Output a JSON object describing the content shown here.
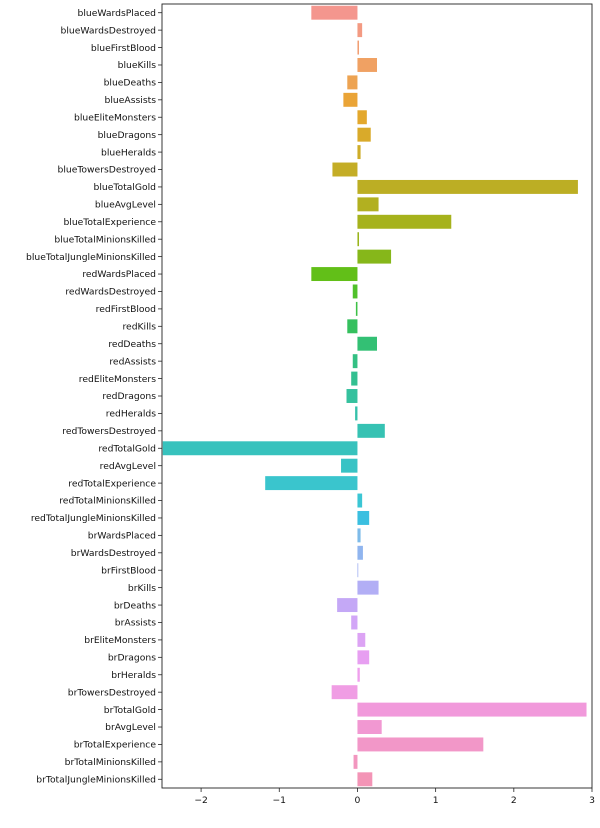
{
  "chart_data": {
    "type": "bar",
    "orientation": "horizontal",
    "categories": [
      "blueWardsPlaced",
      "blueWardsDestroyed",
      "blueFirstBlood",
      "blueKills",
      "blueDeaths",
      "blueAssists",
      "blueEliteMonsters",
      "blueDragons",
      "blueHeralds",
      "blueTowersDestroyed",
      "blueTotalGold",
      "blueAvgLevel",
      "blueTotalExperience",
      "blueTotalMinionsKilled",
      "blueTotalJungleMinionsKilled",
      "redWardsPlaced",
      "redWardsDestroyed",
      "redFirstBlood",
      "redKills",
      "redDeaths",
      "redAssists",
      "redEliteMonsters",
      "redDragons",
      "redHeralds",
      "redTowersDestroyed",
      "redTotalGold",
      "redAvgLevel",
      "redTotalExperience",
      "redTotalMinionsKilled",
      "redTotalJungleMinionsKilled",
      "brWardsPlaced",
      "brWardsDestroyed",
      "brFirstBlood",
      "brKills",
      "brDeaths",
      "brAssists",
      "brEliteMonsters",
      "brDragons",
      "brHeralds",
      "brTowersDestroyed",
      "brTotalGold",
      "brAvgLevel",
      "brTotalExperience",
      "brTotalMinionsKilled",
      "brTotalJungleMinionsKilled"
    ],
    "values": [
      -0.59,
      0.06,
      0.02,
      0.25,
      -0.13,
      -0.18,
      0.12,
      0.17,
      0.04,
      -0.32,
      2.82,
      0.27,
      1.2,
      0.02,
      0.43,
      -0.59,
      -0.06,
      -0.02,
      -0.13,
      0.25,
      -0.06,
      -0.08,
      -0.14,
      -0.03,
      0.35,
      -2.49,
      -0.21,
      -1.18,
      0.06,
      0.15,
      0.04,
      0.07,
      0.01,
      0.27,
      -0.26,
      -0.08,
      0.1,
      0.15,
      0.03,
      -0.33,
      2.93,
      0.31,
      1.61,
      -0.05,
      0.19
    ],
    "colors": [
      "#f4968e",
      "#f39a82",
      "#f19f74",
      "#f0a163",
      "#eda352",
      "#eaa437",
      "#e3a82d",
      "#d9aa2a",
      "#ceac28",
      "#c4ad26",
      "#bcae24",
      "#b2b020",
      "#a6b21c",
      "#99b41b",
      "#86b71a",
      "#62bf18",
      "#50c12a",
      "#3dc146",
      "#35c05e",
      "#33c074",
      "#33c083",
      "#33c091",
      "#35c19e",
      "#35c1aa",
      "#36c2b3",
      "#37c2bd",
      "#38c3c5",
      "#3ac5cd",
      "#3bc6d4",
      "#3bbfe0",
      "#7ebbe9",
      "#90b5ef",
      "#a1b0f2",
      "#b2aef5",
      "#c4a8f6",
      "#d2a6f7",
      "#dca3f4",
      "#e79ff1",
      "#ef9fed",
      "#f09de4",
      "#f199db",
      "#f198d2",
      "#f297c8",
      "#f296bf",
      "#f394b6"
    ],
    "xlim": [
      -2.5,
      3.0
    ],
    "x_ticks": [
      -2,
      -1,
      0,
      1,
      2,
      3
    ],
    "x_tick_labels": [
      "−2",
      "−1",
      "0",
      "1",
      "2",
      "3"
    ],
    "grid": false,
    "xlabel": "",
    "ylabel": "",
    "title": ""
  }
}
